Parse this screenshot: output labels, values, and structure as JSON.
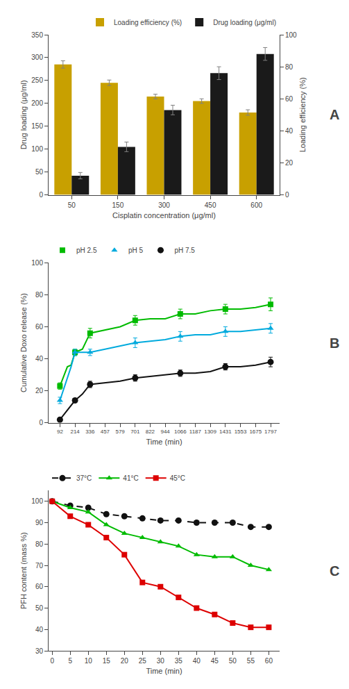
{
  "chart_data": [
    {
      "type": "bar",
      "categories": [
        "50",
        "150",
        "300",
        "450",
        "600"
      ],
      "xlabel": "Cisplatin concentration (μg/ml)",
      "ylabel": "Drug loading (μg/ml)",
      "y2label": "Loading efficiency (%)",
      "ylim": [
        0,
        350
      ],
      "yticks": [
        0,
        50,
        100,
        150,
        200,
        250,
        300,
        350
      ],
      "y2lim": [
        0,
        100
      ],
      "y2ticks": [
        0,
        20,
        40,
        60,
        80,
        100
      ],
      "legend": "upper right",
      "grid": false,
      "annotations": [
        "A"
      ],
      "series": [
        {
          "name": "Loading efficiency (%)",
          "color": "#C8A000",
          "values": [
            285,
            245,
            215,
            205,
            180
          ],
          "errors": [
            8,
            6,
            5,
            5,
            6
          ]
        },
        {
          "name": "Drug loading (μg/ml)",
          "color": "#1a1a1a",
          "axis": "y2",
          "values": [
            12,
            30,
            53,
            76,
            88
          ],
          "errors": [
            2,
            3,
            3,
            4,
            4
          ]
        }
      ]
    },
    {
      "type": "line",
      "xlabel": "Time (min)",
      "ylabel": "Cumulative Doxo release (%)",
      "xlim": [
        0,
        1870
      ],
      "xticks": [
        92,
        214,
        336,
        457,
        579,
        701,
        822,
        944,
        1066,
        1187,
        1309,
        1431,
        1553,
        1675,
        1797
      ],
      "ylim": [
        0,
        100
      ],
      "yticks": [
        0,
        20,
        40,
        60,
        80,
        100
      ],
      "legend": "upper left",
      "grid": false,
      "annotations": [
        "B"
      ],
      "series": [
        {
          "type": "line",
          "color": "#00BB00",
          "line_style": "solid",
          "x": [
            92,
            122,
            152,
            182,
            214,
            244,
            274,
            336,
            457,
            579,
            701,
            822,
            944,
            1066,
            1187,
            1309,
            1431,
            1553,
            1675,
            1797
          ],
          "values": [
            23,
            29,
            35,
            36,
            44,
            45,
            46,
            56,
            58,
            60,
            64,
            65,
            65,
            68,
            68,
            70,
            71,
            71,
            72,
            74
          ]
        },
        {
          "type": "scatter",
          "name": "pH 2.5",
          "color": "#00BB00",
          "marker": "square",
          "x": [
            92,
            214,
            336,
            701,
            1066,
            1431,
            1797
          ],
          "values": [
            23,
            44,
            56,
            64,
            68,
            71,
            74
          ],
          "errors": [
            2,
            2,
            3,
            3,
            3,
            3,
            4
          ]
        },
        {
          "type": "line",
          "color": "#00AADD",
          "line_style": "solid",
          "x": [
            92,
            122,
            152,
            182,
            214,
            244,
            274,
            336,
            457,
            579,
            701,
            822,
            944,
            1066,
            1187,
            1309,
            1431,
            1553,
            1675,
            1797
          ],
          "values": [
            14,
            21,
            27,
            35,
            44,
            44,
            44,
            44,
            46,
            48,
            50,
            51,
            52,
            54,
            55,
            55,
            57,
            57,
            58,
            59
          ]
        },
        {
          "type": "scatter",
          "name": "pH 5",
          "color": "#00AADD",
          "marker": "triangle",
          "x": [
            92,
            214,
            336,
            701,
            1066,
            1431,
            1797
          ],
          "values": [
            14,
            44,
            44,
            50,
            54,
            57,
            59
          ],
          "errors": [
            2,
            2,
            2,
            3,
            3,
            3,
            3
          ]
        },
        {
          "type": "line",
          "color": "#111111",
          "line_style": "solid",
          "x": [
            92,
            122,
            152,
            182,
            214,
            244,
            274,
            336,
            457,
            579,
            701,
            822,
            944,
            1066,
            1187,
            1309,
            1431,
            1553,
            1675,
            1797
          ],
          "values": [
            2,
            5,
            8,
            11,
            14,
            16,
            18,
            24,
            25,
            26,
            28,
            29,
            30,
            31,
            31,
            32,
            35,
            35,
            36,
            38
          ]
        },
        {
          "type": "scatter",
          "name": "pH 7.5",
          "color": "#111111",
          "marker": "circle",
          "x": [
            92,
            214,
            336,
            701,
            1066,
            1431,
            1797
          ],
          "values": [
            2,
            14,
            24,
            28,
            31,
            35,
            38
          ],
          "errors": [
            1,
            1,
            2,
            2,
            2,
            2,
            3
          ]
        }
      ]
    },
    {
      "type": "line",
      "x": [
        0,
        5,
        10,
        15,
        20,
        25,
        30,
        35,
        40,
        45,
        50,
        55,
        60
      ],
      "xlabel": "Time (min)",
      "ylabel": "PFH content (mass %)",
      "xlim": [
        -1,
        63
      ],
      "xticks": [
        0,
        5,
        10,
        15,
        20,
        25,
        30,
        35,
        40,
        45,
        50,
        55,
        60
      ],
      "ylim": [
        30,
        105
      ],
      "yticks": [
        30,
        40,
        50,
        60,
        70,
        80,
        90,
        100
      ],
      "legend": "upper left",
      "grid": false,
      "annotations": [
        "C"
      ],
      "series": [
        {
          "name": "37°C",
          "color": "#111111",
          "marker": "circle",
          "line_style": "dashed",
          "values": [
            100,
            98,
            97,
            94,
            93,
            92,
            91,
            91,
            90,
            90,
            90,
            88,
            88
          ]
        },
        {
          "name": "41°C",
          "color": "#00BB00",
          "marker": "triangle",
          "line_style": "solid",
          "values": [
            100,
            97,
            95,
            89,
            85,
            83,
            81,
            79,
            75,
            74,
            74,
            70,
            68
          ]
        },
        {
          "name": "45°C",
          "color": "#DD0000",
          "marker": "square",
          "line_style": "solid",
          "values": [
            100,
            93,
            89,
            83,
            75,
            62,
            60,
            55,
            50,
            47,
            43,
            41,
            41
          ]
        }
      ]
    }
  ]
}
